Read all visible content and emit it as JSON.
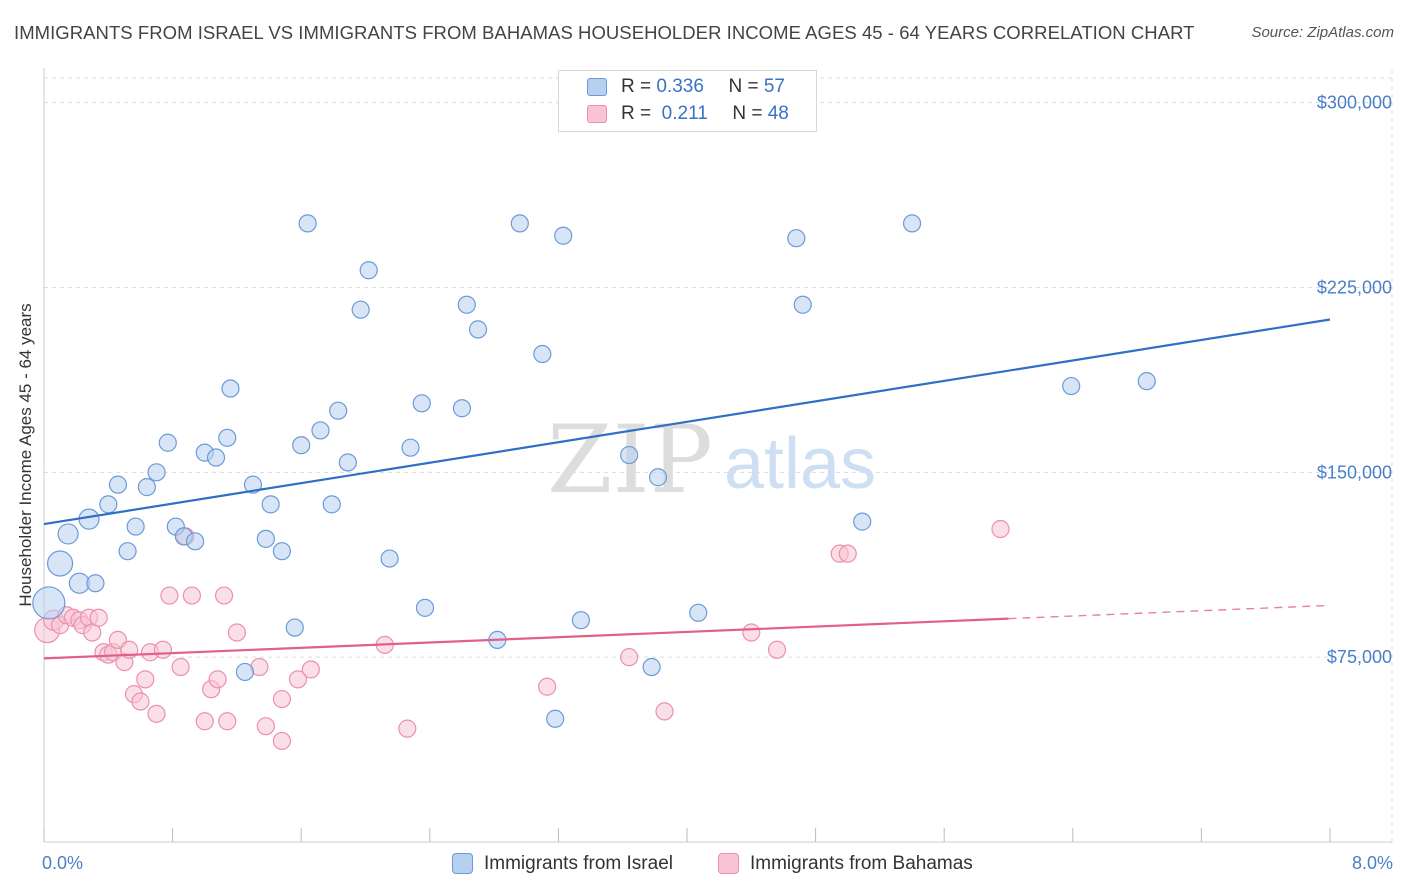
{
  "title": "IMMIGRANTS FROM ISRAEL VS IMMIGRANTS FROM BAHAMAS HOUSEHOLDER INCOME AGES 45 - 64 YEARS CORRELATION CHART",
  "source": "Source: ZipAtlas.com",
  "watermark": {
    "zip": "ZIP",
    "atlas": "atlas"
  },
  "legend_top": {
    "rows": [
      {
        "r_label": "R = ",
        "r_value": "0.336",
        "n_label": "N = ",
        "n_value": "57"
      },
      {
        "r_label": "R = ",
        "r_value": " 0.211",
        "n_label": "N = ",
        "n_value": "48"
      }
    ]
  },
  "legend_bottom": {
    "items": [
      "Immigrants from Israel",
      "Immigrants from Bahamas"
    ]
  },
  "colors": {
    "israel_fill": "#b8d0f0",
    "israel_stroke": "#6a9bd8",
    "israel_line": "#2f6fc6",
    "bahamas_fill": "#f8c4d4",
    "bahamas_stroke": "#ec90ae",
    "bahamas_line": "#e0608c",
    "tick_text": "#4a7fc7",
    "grid": "#dcdcdc"
  },
  "chart_data": {
    "type": "scatter",
    "title": "IMMIGRANTS FROM ISRAEL VS IMMIGRANTS FROM BAHAMAS HOUSEHOLDER INCOME AGES 45 - 64 YEARS CORRELATION CHART",
    "xlabel": "",
    "ylabel": "Householder Income Ages 45 - 64 years",
    "xlim": [
      0,
      8
    ],
    "ylim": [
      0,
      310000
    ],
    "x_tick_labels": [
      "0.0%",
      "8.0%"
    ],
    "y_ticks": [
      75000,
      150000,
      225000,
      300000
    ],
    "y_tick_labels": [
      "$75,000",
      "$150,000",
      "$225,000",
      "$300,000"
    ],
    "grid": true,
    "series": [
      {
        "name": "Immigrants from Israel",
        "r": 0.336,
        "n": 57,
        "trend": {
          "x": [
            0,
            8
          ],
          "y": [
            129000,
            212000
          ],
          "dashed_from": null
        },
        "points": [
          {
            "x": 0.03,
            "y": 97000,
            "size": "xl"
          },
          {
            "x": 0.1,
            "y": 113000,
            "size": "l"
          },
          {
            "x": 0.15,
            "y": 125000,
            "size": "m"
          },
          {
            "x": 0.22,
            "y": 105000,
            "size": "m"
          },
          {
            "x": 0.28,
            "y": 131000,
            "size": "m"
          },
          {
            "x": 0.32,
            "y": 105000,
            "size": "s"
          },
          {
            "x": 0.4,
            "y": 137000,
            "size": "s"
          },
          {
            "x": 0.46,
            "y": 145000,
            "size": "s"
          },
          {
            "x": 0.52,
            "y": 118000,
            "size": "s"
          },
          {
            "x": 0.57,
            "y": 128000,
            "size": "s"
          },
          {
            "x": 0.64,
            "y": 144000,
            "size": "s"
          },
          {
            "x": 0.7,
            "y": 150000,
            "size": "s"
          },
          {
            "x": 0.77,
            "y": 162000,
            "size": "s"
          },
          {
            "x": 0.82,
            "y": 128000,
            "size": "s"
          },
          {
            "x": 0.87,
            "y": 124000,
            "size": "s"
          },
          {
            "x": 0.94,
            "y": 122000,
            "size": "s"
          },
          {
            "x": 1.0,
            "y": 158000,
            "size": "s"
          },
          {
            "x": 1.07,
            "y": 156000,
            "size": "s"
          },
          {
            "x": 1.14,
            "y": 164000,
            "size": "s"
          },
          {
            "x": 1.16,
            "y": 184000,
            "size": "s"
          },
          {
            "x": 1.25,
            "y": 69000,
            "size": "s"
          },
          {
            "x": 1.3,
            "y": 145000,
            "size": "s"
          },
          {
            "x": 1.38,
            "y": 123000,
            "size": "s"
          },
          {
            "x": 1.41,
            "y": 137000,
            "size": "s"
          },
          {
            "x": 1.48,
            "y": 118000,
            "size": "s"
          },
          {
            "x": 1.56,
            "y": 87000,
            "size": "s"
          },
          {
            "x": 1.6,
            "y": 161000,
            "size": "s"
          },
          {
            "x": 1.64,
            "y": 251000,
            "size": "s"
          },
          {
            "x": 1.72,
            "y": 167000,
            "size": "s"
          },
          {
            "x": 1.79,
            "y": 137000,
            "size": "s"
          },
          {
            "x": 1.83,
            "y": 175000,
            "size": "s"
          },
          {
            "x": 1.89,
            "y": 154000,
            "size": "s"
          },
          {
            "x": 1.97,
            "y": 216000,
            "size": "s"
          },
          {
            "x": 2.02,
            "y": 232000,
            "size": "s"
          },
          {
            "x": 2.15,
            "y": 115000,
            "size": "s"
          },
          {
            "x": 2.28,
            "y": 160000,
            "size": "s"
          },
          {
            "x": 2.35,
            "y": 178000,
            "size": "s"
          },
          {
            "x": 2.37,
            "y": 95000,
            "size": "s"
          },
          {
            "x": 2.6,
            "y": 176000,
            "size": "s"
          },
          {
            "x": 2.63,
            "y": 218000,
            "size": "s"
          },
          {
            "x": 2.7,
            "y": 208000,
            "size": "s"
          },
          {
            "x": 2.82,
            "y": 82000,
            "size": "s"
          },
          {
            "x": 2.96,
            "y": 251000,
            "size": "s"
          },
          {
            "x": 3.1,
            "y": 198000,
            "size": "s"
          },
          {
            "x": 3.18,
            "y": 50000,
            "size": "s"
          },
          {
            "x": 3.23,
            "y": 246000,
            "size": "s"
          },
          {
            "x": 3.34,
            "y": 90000,
            "size": "s"
          },
          {
            "x": 3.64,
            "y": 157000,
            "size": "s"
          },
          {
            "x": 3.78,
            "y": 71000,
            "size": "s"
          },
          {
            "x": 3.82,
            "y": 148000,
            "size": "s"
          },
          {
            "x": 4.07,
            "y": 93000,
            "size": "s"
          },
          {
            "x": 4.68,
            "y": 245000,
            "size": "s"
          },
          {
            "x": 4.72,
            "y": 218000,
            "size": "s"
          },
          {
            "x": 5.09,
            "y": 130000,
            "size": "s"
          },
          {
            "x": 5.4,
            "y": 251000,
            "size": "s"
          },
          {
            "x": 6.39,
            "y": 185000,
            "size": "s"
          },
          {
            "x": 6.86,
            "y": 187000,
            "size": "s"
          }
        ]
      },
      {
        "name": "Immigrants from Bahamas",
        "r": 0.211,
        "n": 48,
        "trend": {
          "x": [
            0,
            8
          ],
          "y": [
            74500,
            96000
          ],
          "dashed_from": 6
        },
        "points": [
          {
            "x": 0.02,
            "y": 86000,
            "size": "l"
          },
          {
            "x": 0.06,
            "y": 90000,
            "size": "m"
          },
          {
            "x": 0.1,
            "y": 88000,
            "size": "s"
          },
          {
            "x": 0.14,
            "y": 92000,
            "size": "s"
          },
          {
            "x": 0.18,
            "y": 91000,
            "size": "s"
          },
          {
            "x": 0.22,
            "y": 90000,
            "size": "s"
          },
          {
            "x": 0.24,
            "y": 88000,
            "size": "s"
          },
          {
            "x": 0.28,
            "y": 91000,
            "size": "s"
          },
          {
            "x": 0.3,
            "y": 85000,
            "size": "s"
          },
          {
            "x": 0.34,
            "y": 91000,
            "size": "s"
          },
          {
            "x": 0.37,
            "y": 77000,
            "size": "s"
          },
          {
            "x": 0.4,
            "y": 76000,
            "size": "s"
          },
          {
            "x": 0.43,
            "y": 77000,
            "size": "s"
          },
          {
            "x": 0.46,
            "y": 82000,
            "size": "s"
          },
          {
            "x": 0.5,
            "y": 73000,
            "size": "s"
          },
          {
            "x": 0.53,
            "y": 78000,
            "size": "s"
          },
          {
            "x": 0.56,
            "y": 60000,
            "size": "s"
          },
          {
            "x": 0.6,
            "y": 57000,
            "size": "s"
          },
          {
            "x": 0.63,
            "y": 66000,
            "size": "s"
          },
          {
            "x": 0.66,
            "y": 77000,
            "size": "s"
          },
          {
            "x": 0.7,
            "y": 52000,
            "size": "s"
          },
          {
            "x": 0.74,
            "y": 78000,
            "size": "s"
          },
          {
            "x": 0.78,
            "y": 100000,
            "size": "s"
          },
          {
            "x": 0.85,
            "y": 71000,
            "size": "s"
          },
          {
            "x": 0.88,
            "y": 124000,
            "size": "s"
          },
          {
            "x": 0.92,
            "y": 100000,
            "size": "s"
          },
          {
            "x": 1.0,
            "y": 49000,
            "size": "s"
          },
          {
            "x": 1.04,
            "y": 62000,
            "size": "s"
          },
          {
            "x": 1.08,
            "y": 66000,
            "size": "s"
          },
          {
            "x": 1.12,
            "y": 100000,
            "size": "s"
          },
          {
            "x": 1.14,
            "y": 49000,
            "size": "s"
          },
          {
            "x": 1.2,
            "y": 85000,
            "size": "s"
          },
          {
            "x": 1.34,
            "y": 71000,
            "size": "s"
          },
          {
            "x": 1.38,
            "y": 47000,
            "size": "s"
          },
          {
            "x": 1.48,
            "y": 58000,
            "size": "s"
          },
          {
            "x": 1.48,
            "y": 41000,
            "size": "s"
          },
          {
            "x": 1.58,
            "y": 66000,
            "size": "s"
          },
          {
            "x": 1.66,
            "y": 70000,
            "size": "s"
          },
          {
            "x": 2.12,
            "y": 80000,
            "size": "s"
          },
          {
            "x": 2.26,
            "y": 46000,
            "size": "s"
          },
          {
            "x": 3.13,
            "y": 63000,
            "size": "s"
          },
          {
            "x": 3.64,
            "y": 75000,
            "size": "s"
          },
          {
            "x": 3.86,
            "y": 53000,
            "size": "s"
          },
          {
            "x": 4.4,
            "y": 85000,
            "size": "s"
          },
          {
            "x": 4.56,
            "y": 78000,
            "size": "s"
          },
          {
            "x": 4.95,
            "y": 117000,
            "size": "s"
          },
          {
            "x": 5.0,
            "y": 117000,
            "size": "s"
          },
          {
            "x": 5.95,
            "y": 127000,
            "size": "s"
          }
        ]
      }
    ]
  }
}
